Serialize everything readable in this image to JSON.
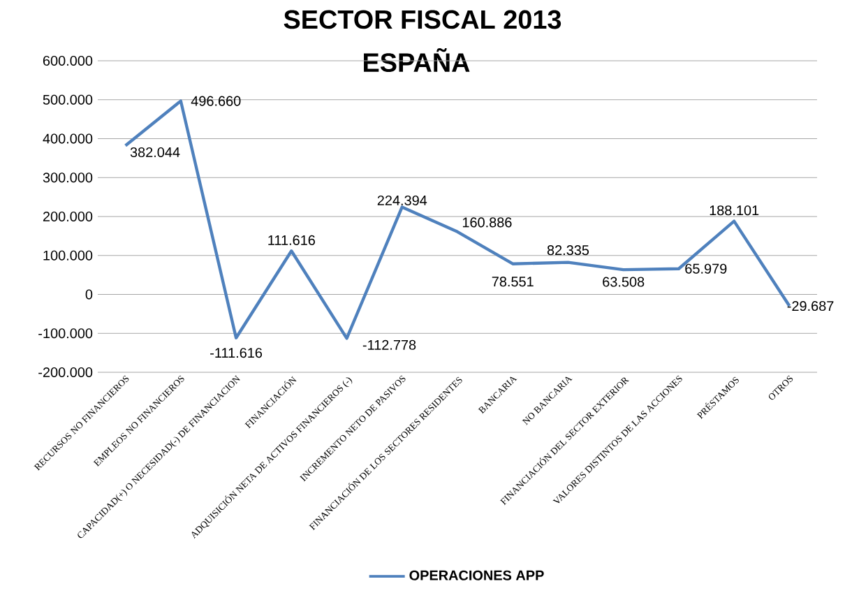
{
  "chart_data": {
    "type": "line",
    "title": "SECTOR FISCAL 2013",
    "subtitle": "ESPAÑA",
    "categories": [
      "RECURSOS NO FINANCIEROS",
      "EMPLEOS NO FINANCIEROS",
      "CAPACIDAD(+) O NECESIDAD(-) DE FINANCIACION",
      "FINANCIACIÓN",
      "ADQUISICIÓN NETA DE ACTIVOS FINANCIEROS (-)",
      "INCREMENTO NETO DE PASIVOS",
      "FINANCIACIÓN DE LOS SECTORES RESIDENTES",
      "BANCARIA",
      "NO BANCARIA",
      "FINANCIACIÓN DEL SECTOR EXTERIOR",
      "VALORES DISTINTOS DE LAS ACCIONES",
      "PRÉSTAMOS",
      "OTROS"
    ],
    "series": [
      {
        "name": "OPERACIONES APP",
        "color": "#4f81bd",
        "values": [
          382044,
          496660,
          -111616,
          111616,
          -112778,
          224394,
          160886,
          78551,
          82335,
          63508,
          65979,
          188101,
          -29687
        ],
        "value_labels": [
          "382.044",
          "496.660",
          "-111.616",
          "111.616",
          "-112.778",
          "224.394",
          "160.886",
          "78.551",
          "82.335",
          "63.508",
          "65.979",
          "188.101",
          "-29.687"
        ]
      }
    ],
    "ylim": [
      -200000,
      600000
    ],
    "yticks": [
      {
        "value": -200000,
        "label": "-200.000"
      },
      {
        "value": -100000,
        "label": "-100.000"
      },
      0,
      {
        "value": 100000,
        "label": "100.000"
      },
      {
        "value": 200000,
        "label": "200.000"
      },
      {
        "value": 300000,
        "label": "300.000"
      },
      {
        "value": 400000,
        "label": "400.000"
      },
      {
        "value": 500000,
        "label": "500.000"
      },
      {
        "value": 600000,
        "label": "600.000"
      }
    ],
    "grid": "y",
    "legend": "bottom",
    "marker": "none",
    "line_style": "solid"
  }
}
